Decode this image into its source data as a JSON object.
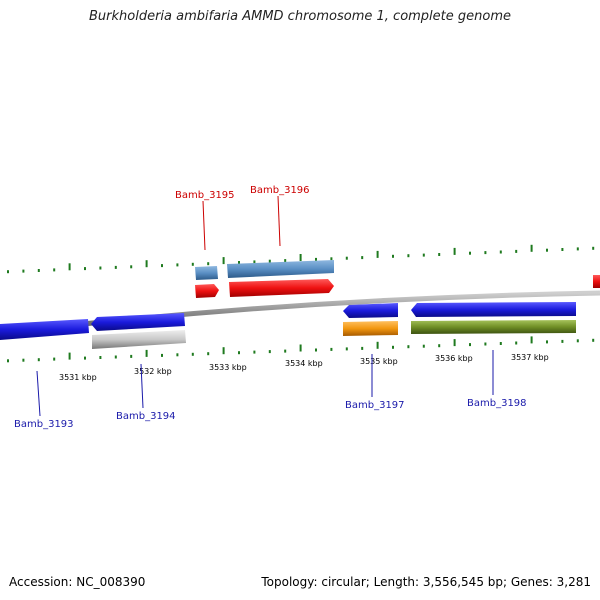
{
  "title": "Burkholderia ambifaria AMMD chromosome 1, complete genome",
  "footer": {
    "accession": "Accession: NC_008390",
    "topology": "Topology: circular; Length: 3,556,545 bp; Genes: 3,281"
  },
  "colors": {
    "forward_gene": "#ee1111",
    "forward_cds": "#5a8fc4",
    "reverse_gene": "#1b1bdd",
    "reverse_cds_grey": "#c8c8c8",
    "reverse_cds_orange": "#f2970f",
    "reverse_cds_olive": "#6f8e25",
    "ticks": "#1f7a1f",
    "label_forward": "#cc0000",
    "label_reverse": "#1a1aaa"
  },
  "axis_labels": [
    "3531 kbp",
    "3532 kbp",
    "3533 kbp",
    "3534 kbp",
    "3535 kbp",
    "3536 kbp",
    "3537 kbp"
  ],
  "genes": [
    {
      "id": "Bamb_3193",
      "label": "Bamb_3193",
      "strand": "reverse"
    },
    {
      "id": "Bamb_3194",
      "label": "Bamb_3194",
      "strand": "reverse"
    },
    {
      "id": "Bamb_3195",
      "label": "Bamb_3195",
      "strand": "forward"
    },
    {
      "id": "Bamb_3196",
      "label": "Bamb_3196",
      "strand": "forward"
    },
    {
      "id": "Bamb_3197",
      "label": "Bamb_3197",
      "strand": "reverse"
    },
    {
      "id": "Bamb_3198",
      "label": "Bamb_3198",
      "strand": "reverse"
    }
  ]
}
